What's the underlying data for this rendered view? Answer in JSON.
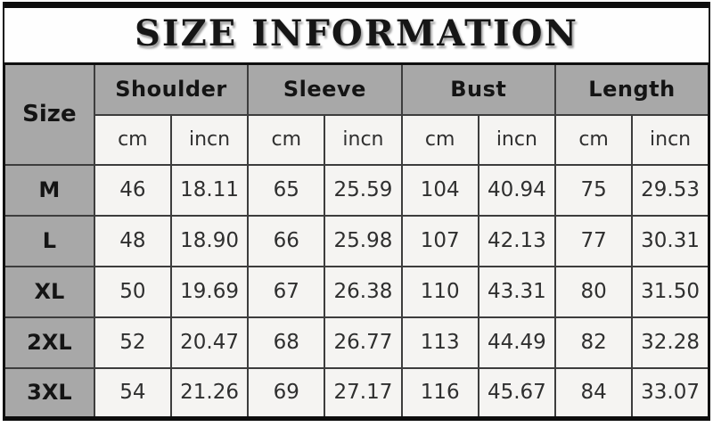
{
  "title": "SIZE INFORMATION",
  "chart_data": {
    "type": "table",
    "title": "SIZE INFORMATION",
    "corner_header": "Size",
    "group_headers": [
      "Shoulder",
      "Sleeve",
      "Bust",
      "Length"
    ],
    "unit_headers": [
      "cm",
      "incn",
      "cm",
      "incn",
      "cm",
      "incn",
      "cm",
      "incn"
    ],
    "rows": [
      {
        "size": "M",
        "values": [
          "46",
          "18.11",
          "65",
          "25.59",
          "104",
          "40.94",
          "75",
          "29.53"
        ]
      },
      {
        "size": "L",
        "values": [
          "48",
          "18.90",
          "66",
          "25.98",
          "107",
          "42.13",
          "77",
          "30.31"
        ]
      },
      {
        "size": "XL",
        "values": [
          "50",
          "19.69",
          "67",
          "26.38",
          "110",
          "43.31",
          "80",
          "31.50"
        ]
      },
      {
        "size": "2XL",
        "values": [
          "52",
          "20.47",
          "68",
          "26.77",
          "113",
          "44.49",
          "82",
          "32.28"
        ]
      },
      {
        "size": "3XL",
        "values": [
          "54",
          "21.26",
          "69",
          "27.17",
          "116",
          "45.67",
          "84",
          "33.07"
        ]
      }
    ]
  },
  "colors": {
    "header_bg": "#a8a8a8",
    "cell_bg": "#f5f4f2",
    "inner_border": "#3d3d3d",
    "outer_border": "#101010",
    "top_bar": "#0d0d0d",
    "heading_text": "#141414",
    "value_text": "#2f2f2f",
    "page_bg": "#ffffff"
  }
}
